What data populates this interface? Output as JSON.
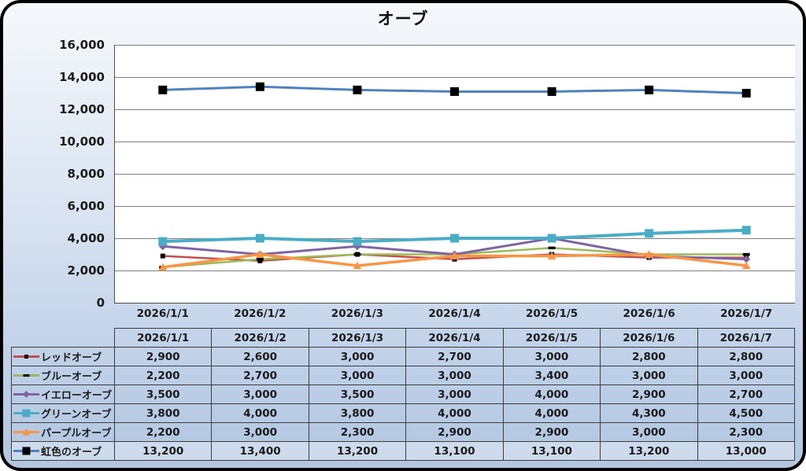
{
  "chart_data": {
    "type": "line",
    "title": "オーブ",
    "categories": [
      "2026/1/1",
      "2026/1/2",
      "2026/1/3",
      "2026/1/4",
      "2026/1/5",
      "2026/1/6",
      "2026/1/7"
    ],
    "series": [
      {
        "name": "レッドオーブ",
        "color": "#C0504D",
        "line_width": 2.5,
        "marker": {
          "shape": "square",
          "color": "#000000",
          "size": 6
        },
        "values": [
          2900,
          2600,
          3000,
          2700,
          3000,
          2800,
          2800
        ]
      },
      {
        "name": "ブルーオーブ",
        "color": "#9BBB59",
        "line_width": 2.5,
        "marker": {
          "shape": "dash",
          "color": "#000000",
          "size": 9
        },
        "values": [
          2200,
          2700,
          3000,
          3000,
          3400,
          3000,
          3000
        ]
      },
      {
        "name": "イエローオーブ",
        "color": "#8064A2",
        "line_width": 3,
        "marker": {
          "shape": "diamond",
          "color": "#8064A2",
          "size": 10
        },
        "values": [
          3500,
          3000,
          3500,
          3000,
          4000,
          2900,
          2700
        ]
      },
      {
        "name": "グリーンオーブ",
        "color": "#4BACC6",
        "line_width": 4,
        "marker": {
          "shape": "square",
          "color": "#4BACC6",
          "size": 11
        },
        "values": [
          3800,
          4000,
          3800,
          4000,
          4000,
          4300,
          4500
        ]
      },
      {
        "name": "パープルオーブ",
        "color": "#F79646",
        "line_width": 3.5,
        "marker": {
          "shape": "triangle",
          "color": "#F79646",
          "size": 11
        },
        "values": [
          2200,
          3000,
          2300,
          2900,
          2900,
          3000,
          2300
        ]
      },
      {
        "name": "虹色のオーブ",
        "color": "#4F81BD",
        "line_width": 3,
        "marker": {
          "shape": "square",
          "color": "#000000",
          "size": 11
        },
        "values": [
          13200,
          13400,
          13200,
          13100,
          13100,
          13200,
          13000
        ]
      }
    ],
    "ylim": [
      0,
      16000
    ],
    "ytick_step": 2000,
    "ytick_labels": [
      "0",
      "2,000",
      "4,000",
      "6,000",
      "8,000",
      "10,000",
      "12,000",
      "14,000",
      "16,000"
    ],
    "grid": true,
    "gridline_color": "#7f7f7f",
    "axis_line_color": "#4d4d4d",
    "plot_background": "#ffffff",
    "legend_position": "table-left-column"
  },
  "colors": {
    "frame_border": "#000000",
    "background_top": "#f6f9fc",
    "background_bottom": "#b2c6e0",
    "table_border": "#3d3d3d",
    "text": "#1a1a1a"
  }
}
